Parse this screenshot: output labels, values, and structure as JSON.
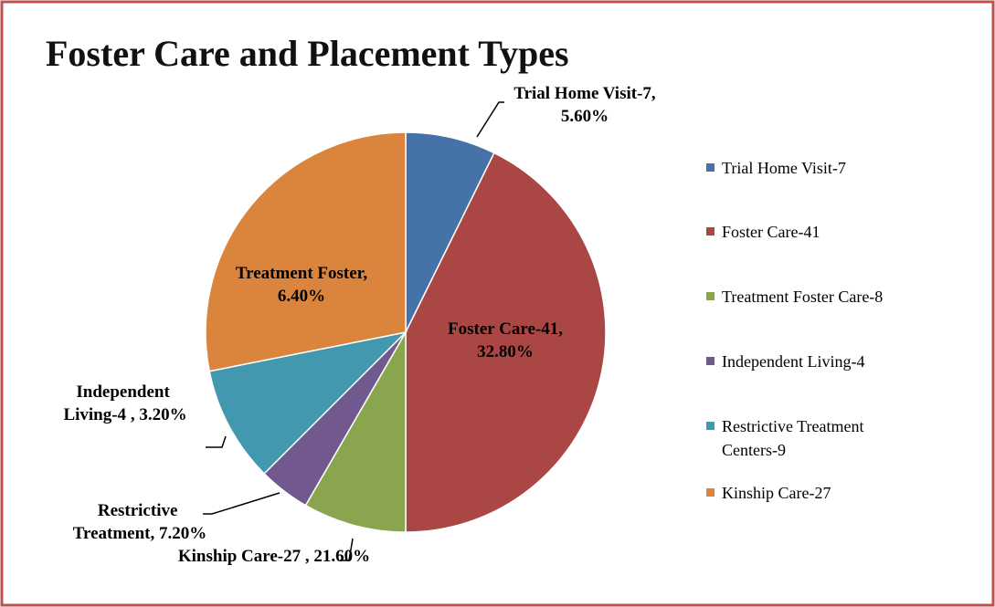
{
  "chart_data": {
    "type": "pie",
    "title": "Foster Care and Placement Types",
    "categories": [
      "Trial Home Visit-7",
      "Foster Care-41",
      "Treatment Foster Care-8",
      "Independent Living-4",
      "Restrictive Treatment Centers-9",
      "Kinship Care-27"
    ],
    "values": [
      5.6,
      32.8,
      6.4,
      3.2,
      7.2,
      21.6
    ],
    "value_labels": [
      "5.60%",
      "32.80%",
      "6.40%",
      "3.20%",
      "7.20%",
      "21.60%"
    ],
    "colors": [
      "#4572a7",
      "#aa4643",
      "#89a54e",
      "#71588f",
      "#4198af",
      "#db843d"
    ],
    "legend": "right"
  }
}
